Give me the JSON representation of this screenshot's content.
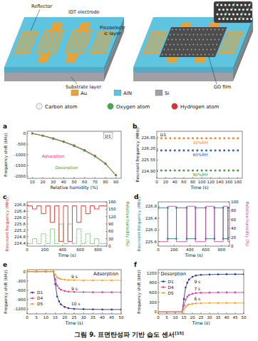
{
  "schematic": {
    "reflector": "Reflector",
    "idt": "IDT electrode",
    "piezo": [
      "Piezoelectr",
      "ic layer"
    ],
    "substrate": "Substrate layer",
    "film": "GO film"
  },
  "materials": [
    {
      "label": "Au",
      "color": "#e8a236",
      "marker": "square"
    },
    {
      "label": "AlN",
      "color": "#5fc4e0",
      "marker": "square"
    },
    {
      "label": "Si",
      "color": "#a0a0a4",
      "marker": "square"
    },
    {
      "label": "Carbon atom",
      "color": "#f2f2f2",
      "marker": "sphere"
    },
    {
      "label": "Oxygen atom",
      "color": "#3cb04a",
      "marker": "sphere"
    },
    {
      "label": "Hydrogen atom",
      "color": "#e03030",
      "marker": "sphere"
    }
  ],
  "chart_data": [
    {
      "panel": "a",
      "type": "line",
      "x_label": "Relative humidity (%)",
      "y_label": "Frequency shift (kHz)",
      "x": [
        10,
        20,
        30,
        40,
        50,
        60,
        70,
        80,
        90
      ],
      "series": [
        {
          "name": "Adsorption",
          "color": "#d8344a",
          "marker": "square",
          "values": [
            0,
            -100,
            -230,
            -380,
            -560,
            -780,
            -1050,
            -1400,
            -1950
          ]
        },
        {
          "name": "Desorption",
          "color": "#3f9a3f",
          "marker": "triangle",
          "values": [
            0,
            -110,
            -250,
            -400,
            -590,
            -810,
            -1080,
            -1430,
            -1960
          ]
        }
      ],
      "xlim": [
        5,
        95
      ],
      "ylim": [
        -2100,
        100
      ],
      "xticks": [
        10,
        20,
        30,
        40,
        50,
        60,
        70,
        80,
        90
      ],
      "yticks": [
        -2000,
        -1500,
        -1000,
        -500,
        0
      ],
      "annotations": [
        "D1"
      ]
    },
    {
      "panel": "b",
      "type": "line",
      "x_label": "Time (s)",
      "y_label": "Resonant frequency (MHz)",
      "x": [
        0,
        10,
        20,
        30,
        40,
        50,
        60,
        70,
        80,
        90,
        100,
        110,
        120,
        130,
        140,
        150,
        160,
        170,
        180
      ],
      "series": [
        {
          "name": "10%RH",
          "color": "#e8862a",
          "marker": "square",
          "line_style": "none",
          "values": [
            226.8,
            226.8,
            226.8,
            226.8,
            226.8,
            226.8,
            226.8,
            226.8,
            226.8,
            226.8,
            226.8,
            226.8,
            226.8,
            226.8,
            226.8,
            226.8,
            226.8,
            226.8,
            226.8
          ]
        },
        {
          "name": "60%RH",
          "color": "#2f5fb0",
          "marker": "square",
          "line_style": "none",
          "values": [
            226.1,
            226.1,
            226.1,
            226.1,
            226.1,
            226.1,
            226.1,
            226.1,
            226.1,
            226.1,
            226.1,
            226.1,
            226.1,
            226.1,
            226.1,
            226.1,
            226.1,
            226.1,
            226.1
          ]
        },
        {
          "name": "90%RH",
          "color": "#3f9a3f",
          "marker": "square",
          "line_style": "none",
          "values": [
            224.95,
            224.95,
            224.95,
            224.95,
            224.95,
            224.95,
            224.95,
            224.95,
            224.95,
            224.95,
            224.95,
            224.95,
            224.95,
            224.95,
            224.95,
            224.95,
            224.95,
            224.95,
            224.95
          ]
        }
      ],
      "xlim": [
        0,
        190
      ],
      "ylim": [
        224.5,
        227.2
      ],
      "xticks": [
        0,
        20,
        40,
        60,
        80,
        100,
        120,
        140,
        160,
        180
      ],
      "yticks": [
        {
          "value": 224.9,
          "label": "224.90"
        },
        225.55,
        {
          "value": 226.2,
          "label": "226.20"
        },
        226.85
      ],
      "annotations": [
        "D1"
      ]
    },
    {
      "panel": "c",
      "type": "line",
      "x_label": "Time (s)",
      "y_label": "Resonant frequency (MHz)",
      "y2_label": "Relative humidity (%)",
      "x": [
        0,
        60,
        60,
        110,
        110,
        160,
        160,
        210,
        210,
        260,
        260,
        310,
        310,
        360,
        360,
        410,
        410,
        460,
        460,
        510,
        510,
        560,
        560,
        610,
        610,
        660,
        660,
        710,
        710,
        760,
        760,
        810,
        810,
        900
      ],
      "series": [
        {
          "color": "#e03030",
          "values": [
            226.75,
            226.75,
            226.55,
            226.55,
            226.75,
            226.75,
            226.25,
            226.25,
            226.75,
            226.75,
            225.7,
            225.7,
            226.75,
            226.75,
            224.5,
            224.5,
            226.75,
            226.75,
            224.5,
            224.5,
            226.75,
            226.75,
            225.7,
            225.7,
            226.75,
            226.75,
            226.25,
            226.25,
            226.75,
            226.75,
            226.55,
            226.55,
            226.75,
            226.75
          ]
        },
        {
          "color": "#2a9a2a",
          "axis": "y2",
          "line_style": "dotted",
          "values": [
            10,
            10,
            30,
            30,
            10,
            10,
            50,
            50,
            10,
            10,
            70,
            70,
            10,
            10,
            90,
            90,
            10,
            10,
            90,
            90,
            10,
            10,
            70,
            70,
            10,
            10,
            50,
            50,
            10,
            10,
            30,
            30,
            10,
            10
          ]
        }
      ],
      "xlim": [
        0,
        900
      ],
      "ylim": [
        224.2,
        227.0
      ],
      "xticks": [
        0,
        200,
        400,
        600,
        800
      ],
      "yticks": [
        224.4,
        224.8,
        225.2,
        225.6,
        {
          "value": 226,
          "label": "226.0"
        },
        226.4,
        226.8
      ],
      "y2lim": [
        0,
        180
      ],
      "y2ticks": [
        0,
        30,
        60,
        90,
        120,
        150,
        180
      ]
    },
    {
      "panel": "d",
      "type": "line",
      "x_label": "Time (s)",
      "y_label": "Resonant frequency (MHz)",
      "y2_label": "Relative humidity (%)",
      "x": [
        0,
        120,
        120,
        230,
        230,
        360,
        360,
        470,
        470,
        600,
        600,
        710,
        710,
        820,
        820,
        880,
        880,
        900
      ],
      "series": [
        {
          "color": "#1f7f8f",
          "marker": "circle",
          "values": [
            226.75,
            226.75,
            225.7,
            225.7,
            226.75,
            226.75,
            225.7,
            225.7,
            226.75,
            226.75,
            225.7,
            225.7,
            226.75,
            226.75,
            225.7,
            225.7,
            226.75,
            226.75
          ]
        },
        {
          "color": "#d040a0",
          "axis": "y2",
          "values": [
            10,
            10,
            90,
            90,
            10,
            10,
            90,
            90,
            10,
            10,
            90,
            90,
            10,
            10,
            90,
            90,
            10,
            10
          ]
        }
      ],
      "xlim": [
        0,
        900
      ],
      "ylim": [
        225.45,
        226.95
      ],
      "xticks": [
        0,
        200,
        400,
        600,
        800
      ],
      "yticks": [
        225.6,
        {
          "value": 226,
          "label": "226.0"
        },
        226.4,
        226.8
      ],
      "y2lim": [
        0,
        100
      ],
      "y2ticks": [
        0,
        20,
        40,
        60,
        80,
        100
      ]
    },
    {
      "panel": "e",
      "type": "line",
      "title": "Adsorption",
      "x_label": "Time (s)",
      "y_label": "Frequency shift (kHz)",
      "legend": "left",
      "x": [
        0,
        5,
        10,
        14,
        15,
        16,
        17,
        18,
        20,
        22,
        25,
        30,
        35,
        40,
        45,
        50
      ],
      "series": [
        {
          "name": "D1",
          "color": "#2b3990",
          "marker": "circle",
          "values": [
            0,
            0,
            0,
            0,
            -400,
            -800,
            -950,
            -1050,
            -1130,
            -1170,
            -1190,
            -1200,
            -1205,
            -1210,
            -1210,
            -1210
          ]
        },
        {
          "name": "D4",
          "color": "#e0409a",
          "marker": "circle",
          "values": [
            0,
            0,
            0,
            0,
            -250,
            -450,
            -530,
            -580,
            -620,
            -640,
            -650,
            -655,
            -660,
            -660,
            -660,
            -660
          ]
        },
        {
          "name": "D5",
          "color": "#f0a030",
          "marker": "circle",
          "values": [
            0,
            0,
            0,
            0,
            -100,
            -180,
            -220,
            -240,
            -260,
            -270,
            -275,
            -280,
            -280,
            -280,
            -280,
            -280
          ]
        }
      ],
      "xlim": [
        0,
        50
      ],
      "ylim": [
        -1350,
        60
      ],
      "xticks": [
        0,
        5,
        10,
        15,
        20,
        25,
        30,
        35,
        40,
        45,
        50
      ],
      "yticks": [
        -1200,
        -900,
        -600,
        -300,
        0
      ],
      "annotations": [
        "9 s",
        "9 s",
        "10 s"
      ]
    },
    {
      "panel": "f",
      "type": "line",
      "title": "Desorption",
      "x_label": "Time (s)",
      "y_label": "Frequency shift (kHz)",
      "legend": "left",
      "x": [
        0,
        5,
        10,
        14,
        15,
        16,
        17,
        18,
        20,
        22,
        25,
        30,
        35,
        40,
        45,
        50
      ],
      "series": [
        {
          "name": "D1",
          "color": "#2b3990",
          "marker": "circle",
          "values": [
            0,
            0,
            0,
            0,
            400,
            750,
            900,
            1000,
            1080,
            1120,
            1140,
            1150,
            1155,
            1160,
            1160,
            1160
          ]
        },
        {
          "name": "D4",
          "color": "#e0409a",
          "marker": "circle",
          "values": [
            0,
            0,
            0,
            0,
            200,
            380,
            470,
            520,
            560,
            580,
            590,
            595,
            600,
            600,
            600,
            600
          ]
        },
        {
          "name": "D5",
          "color": "#f0a030",
          "marker": "circle",
          "values": [
            0,
            0,
            0,
            0,
            80,
            150,
            200,
            230,
            250,
            260,
            270,
            275,
            275,
            275,
            275,
            275
          ]
        }
      ],
      "xlim": [
        0,
        50
      ],
      "ylim": [
        -60,
        1300
      ],
      "xticks": [
        0,
        5,
        10,
        15,
        20,
        25,
        30,
        35,
        40,
        45,
        50
      ],
      "yticks": [
        0,
        300,
        600,
        900,
        1200
      ],
      "annotations": [
        "9 s",
        "7 s",
        "6 s"
      ]
    }
  ],
  "caption": {
    "text": "그림 9. 표면탄성파 기반 습도 센서",
    "ref": "[15]"
  }
}
